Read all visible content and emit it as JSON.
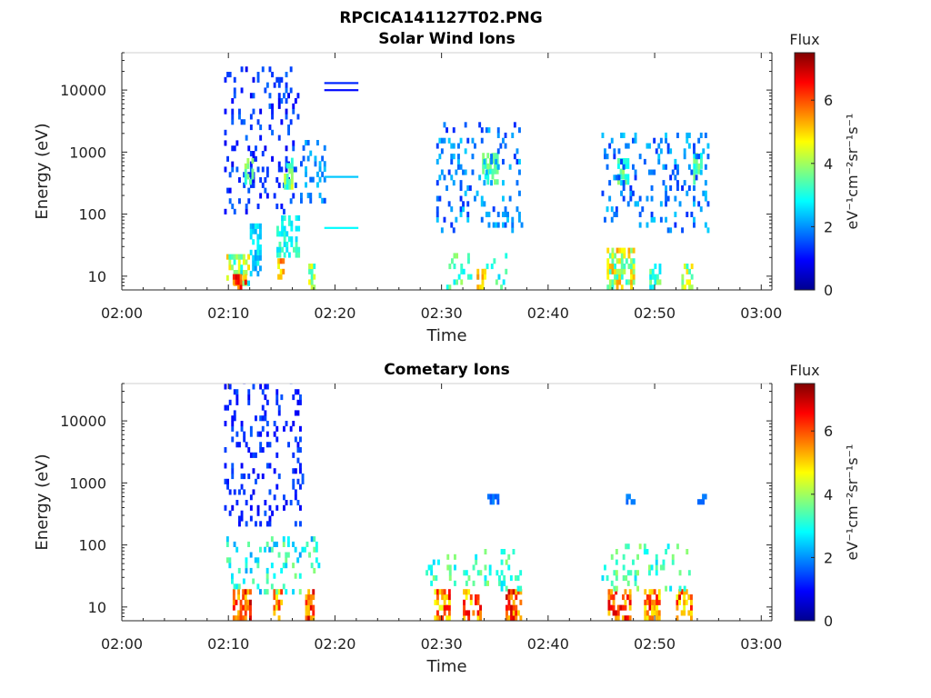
{
  "figure": {
    "title": "RPCICA141127T02.PNG",
    "colorbar_label": "Flux",
    "colorbar_unit": "eV⁻¹cm⁻²sr⁻¹s⁻¹",
    "colormap": "jet"
  },
  "chart_data": [
    {
      "type": "heatmap",
      "title": "Solar Wind Ions",
      "xlabel": "Time",
      "ylabel": "Energy (eV)",
      "xlim_minutes": [
        0,
        61
      ],
      "x_tick_labels": [
        "02:00",
        "02:10",
        "02:20",
        "02:30",
        "02:40",
        "02:50",
        "03:00"
      ],
      "x_tick_minutes": [
        0,
        10,
        20,
        30,
        40,
        50,
        60
      ],
      "y_scale": "log",
      "ylim": [
        6,
        40000
      ],
      "y_tick_labels": [
        "10",
        "100",
        "1000",
        "10000"
      ],
      "y_tick_values": [
        10,
        100,
        1000,
        10000
      ],
      "clim": [
        0,
        7.5
      ],
      "cb_tick_labels": [
        "0",
        "2",
        "4",
        "6"
      ],
      "cb_tick_values": [
        0,
        2,
        4,
        6
      ],
      "clusters": [
        {
          "t": [
            9.8,
            12.0
          ],
          "e": [
            7,
            20
          ],
          "v": [
            2.5,
            5.5
          ]
        },
        {
          "t": [
            10.4,
            11.6
          ],
          "e": [
            6,
            9
          ],
          "v": [
            5,
            7
          ]
        },
        {
          "t": [
            12.0,
            13.0
          ],
          "e": [
            10,
            60
          ],
          "v": [
            2,
            3
          ]
        },
        {
          "t": [
            14.6,
            15.1
          ],
          "e": [
            6,
            16
          ],
          "v": [
            4.5,
            6
          ]
        },
        {
          "t": [
            14.5,
            16.5
          ],
          "e": [
            20,
            80
          ],
          "v": [
            2.5,
            3.5
          ]
        },
        {
          "t": [
            17.5,
            18.0
          ],
          "e": [
            6,
            15
          ],
          "v": [
            3,
            5
          ]
        },
        {
          "t": [
            9.6,
            16.5
          ],
          "e": [
            100,
            20000
          ],
          "v": [
            0.8,
            1.8
          ],
          "sparse": true
        },
        {
          "t": [
            11.5,
            12.3
          ],
          "e": [
            300,
            800
          ],
          "v": [
            3,
            4.5
          ]
        },
        {
          "t": [
            15.2,
            15.9
          ],
          "e": [
            250,
            700
          ],
          "v": [
            2.8,
            4.5
          ]
        },
        {
          "t": [
            16.5,
            19.0
          ],
          "e": [
            150,
            1500
          ],
          "v": [
            1.5,
            2.5
          ],
          "sparse": true
        },
        {
          "t": [
            30.0,
            36.0
          ],
          "e": [
            6,
            20
          ],
          "v": [
            2.5,
            4
          ],
          "sparse": true
        },
        {
          "t": [
            33.3,
            34.0
          ],
          "e": [
            6,
            12
          ],
          "v": [
            4.5,
            5.5
          ]
        },
        {
          "t": [
            33.8,
            35.2
          ],
          "e": [
            300,
            800
          ],
          "v": [
            2.8,
            4
          ]
        },
        {
          "t": [
            29.5,
            37.5
          ],
          "e": [
            50,
            3000
          ],
          "v": [
            1.2,
            2.5
          ],
          "sparse": true
        },
        {
          "t": [
            45.5,
            48.0
          ],
          "e": [
            6,
            25
          ],
          "v": [
            3,
            5.5
          ]
        },
        {
          "t": [
            49.5,
            50.5
          ],
          "e": [
            6,
            15
          ],
          "v": [
            2.5,
            4
          ]
        },
        {
          "t": [
            52.5,
            53.5
          ],
          "e": [
            6,
            15
          ],
          "v": [
            3,
            5
          ]
        },
        {
          "t": [
            46.5,
            47.5
          ],
          "e": [
            300,
            700
          ],
          "v": [
            2.8,
            4
          ]
        },
        {
          "t": [
            53.6,
            54.3
          ],
          "e": [
            300,
            800
          ],
          "v": [
            2.8,
            4
          ]
        },
        {
          "t": [
            45.0,
            55.0
          ],
          "e": [
            50,
            2000
          ],
          "v": [
            1.2,
            2.5
          ],
          "sparse": true
        }
      ],
      "lines": [
        {
          "t": [
            19.0,
            22.2
          ],
          "e": 13000,
          "v": 1.2
        },
        {
          "t": [
            19.0,
            22.2
          ],
          "e": 10000,
          "v": 1.0
        },
        {
          "t": [
            19.0,
            22.2
          ],
          "e": 400,
          "v": 2.4
        },
        {
          "t": [
            19.0,
            22.2
          ],
          "e": 60,
          "v": 2.8
        }
      ]
    },
    {
      "type": "heatmap",
      "title": "Cometary Ions",
      "xlabel": "Time",
      "ylabel": "Energy (eV)",
      "xlim_minutes": [
        0,
        61
      ],
      "x_tick_labels": [
        "02:00",
        "02:10",
        "02:20",
        "02:30",
        "02:40",
        "02:50",
        "03:00"
      ],
      "x_tick_minutes": [
        0,
        10,
        20,
        30,
        40,
        50,
        60
      ],
      "y_scale": "log",
      "ylim": [
        6,
        40000
      ],
      "y_tick_labels": [
        "10",
        "100",
        "1000",
        "10000"
      ],
      "y_tick_values": [
        10,
        100,
        1000,
        10000
      ],
      "clim": [
        0,
        7.5
      ],
      "cb_tick_labels": [
        "0",
        "2",
        "4",
        "6"
      ],
      "cb_tick_values": [
        0,
        2,
        4,
        6
      ],
      "clusters": [
        {
          "t": [
            10.4,
            12.0
          ],
          "e": [
            6,
            16
          ],
          "v": [
            5,
            7.2
          ]
        },
        {
          "t": [
            14.2,
            15.0
          ],
          "e": [
            6,
            16
          ],
          "v": [
            4.5,
            6.5
          ]
        },
        {
          "t": [
            17.2,
            18.0
          ],
          "e": [
            6,
            16
          ],
          "v": [
            5,
            7
          ]
        },
        {
          "t": [
            9.8,
            18.5
          ],
          "e": [
            16,
            120
          ],
          "v": [
            2,
            3.8
          ],
          "sparse": true
        },
        {
          "t": [
            9.6,
            17.0
          ],
          "e": [
            200,
            40000
          ],
          "v": [
            0.8,
            1.6
          ],
          "sparse": true
        },
        {
          "t": [
            29.3,
            30.8
          ],
          "e": [
            6,
            18
          ],
          "v": [
            4.5,
            6.8
          ]
        },
        {
          "t": [
            32.0,
            33.6
          ],
          "e": [
            6,
            18
          ],
          "v": [
            4.5,
            6.8
          ]
        },
        {
          "t": [
            36.0,
            37.5
          ],
          "e": [
            6,
            18
          ],
          "v": [
            5,
            7
          ]
        },
        {
          "t": [
            28.5,
            37.5
          ],
          "e": [
            18,
            80
          ],
          "v": [
            2.5,
            4
          ],
          "sparse": true
        },
        {
          "t": [
            34.3,
            35.2
          ],
          "e": [
            450,
            600
          ],
          "v": [
            1.5,
            2
          ]
        },
        {
          "t": [
            45.6,
            47.6
          ],
          "e": [
            6,
            18
          ],
          "v": [
            5,
            7
          ]
        },
        {
          "t": [
            49.0,
            50.5
          ],
          "e": [
            6,
            18
          ],
          "v": [
            4.5,
            6.8
          ]
        },
        {
          "t": [
            52.0,
            53.5
          ],
          "e": [
            6,
            18
          ],
          "v": [
            4.5,
            6.8
          ]
        },
        {
          "t": [
            45.0,
            53.5
          ],
          "e": [
            18,
            100
          ],
          "v": [
            2.5,
            4
          ],
          "sparse": true
        },
        {
          "t": [
            47.3,
            48.0
          ],
          "e": [
            450,
            600
          ],
          "v": [
            1.5,
            2
          ]
        },
        {
          "t": [
            54.0,
            54.7
          ],
          "e": [
            450,
            600
          ],
          "v": [
            1.5,
            2
          ]
        }
      ],
      "lines": []
    }
  ]
}
